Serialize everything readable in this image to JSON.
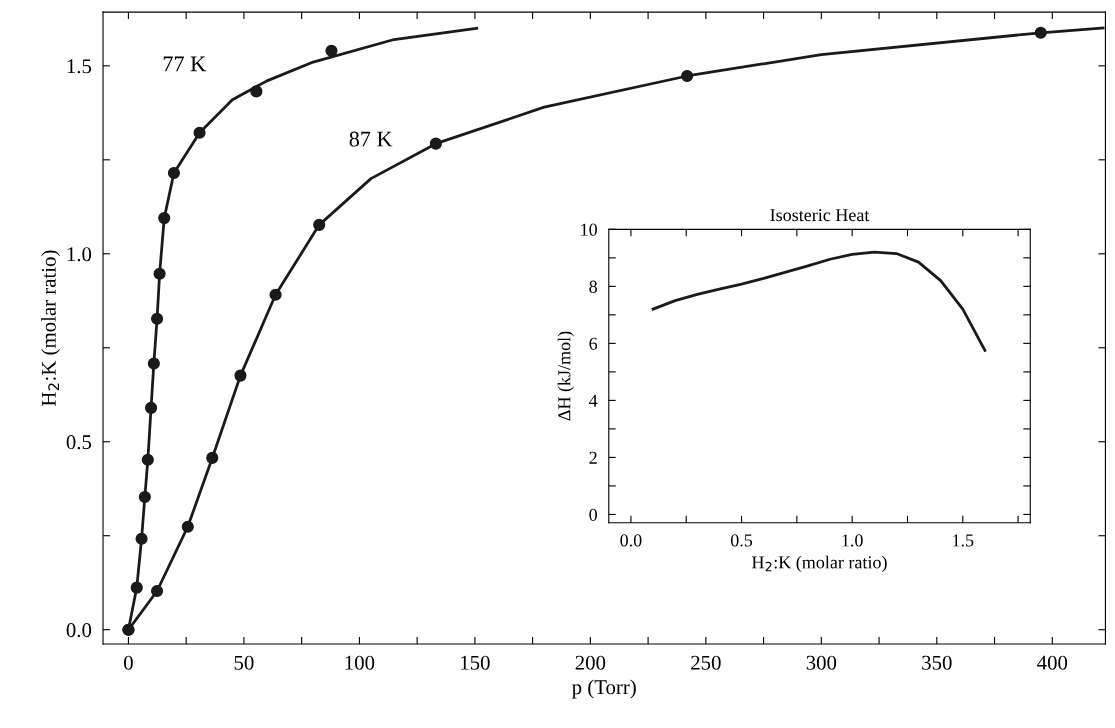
{
  "chart_data": [
    {
      "type": "scatter",
      "xlabel": "p (Torr)",
      "ylabel": "H$_{2}$:K (molar ratio)",
      "xlim": [
        -11,
        423
      ],
      "ylim": [
        -0.038,
        1.643
      ],
      "xticks": [
        0,
        {
          "value": 25,
          "label": null
        },
        50,
        {
          "value": 75,
          "label": null
        },
        100,
        {
          "value": 125,
          "label": null
        },
        150,
        {
          "value": 175,
          "label": null
        },
        200,
        {
          "value": 225,
          "label": null
        },
        250,
        {
          "value": 275,
          "label": null
        },
        300,
        {
          "value": 325,
          "label": null
        },
        350,
        {
          "value": 375,
          "label": null
        },
        400
      ],
      "yticks": [
        {
          "value": 0,
          "label": "0.0"
        },
        {
          "value": 0.25,
          "label": null
        },
        0.5,
        {
          "value": 0.75,
          "label": null
        },
        {
          "value": 1.0,
          "label": "1.0"
        },
        {
          "value": 1.25,
          "label": null
        },
        1.5
      ],
      "grid": false,
      "legend": false,
      "series": [
        {
          "type": "line",
          "color": "#1a1a1a",
          "marker": "none",
          "line_style": "solid",
          "x": [
            0,
            3.6,
            5.7,
            7.1,
            8.4,
            9.8,
            11,
            12.4,
            13.5,
            15.5,
            19.7,
            30.8,
            45,
            60,
            80,
            115,
            150.8
          ],
          "values": [
            0,
            0.112,
            0.242,
            0.353,
            0.452,
            0.59,
            0.708,
            0.827,
            0.947,
            1.095,
            1.215,
            1.322,
            1.41,
            1.46,
            1.51,
            1.57,
            1.6
          ]
        },
        {
          "type": "line",
          "color": "#1a1a1a",
          "marker": "none",
          "line_style": "solid",
          "x": [
            0,
            12.4,
            25.7,
            36.3,
            48.5,
            63.7,
            82.6,
            105,
            133.1,
            180,
            241.9,
            300,
            395,
            422
          ],
          "values": [
            0,
            0.103,
            0.274,
            0.457,
            0.676,
            0.891,
            1.077,
            1.2,
            1.293,
            1.39,
            1.473,
            1.53,
            1.588,
            1.601
          ]
        },
        {
          "type": "scatter",
          "color": "#1a1a1a",
          "marker": "circle",
          "x": [
            0,
            3.6,
            5.7,
            7.1,
            8.4,
            9.8,
            11,
            12.4,
            13.5,
            15.5,
            19.7,
            30.8,
            55.4,
            87.9
          ],
          "values": [
            0,
            0.112,
            0.242,
            0.353,
            0.452,
            0.59,
            0.708,
            0.827,
            0.947,
            1.095,
            1.215,
            1.322,
            1.432,
            1.54
          ]
        },
        {
          "type": "scatter",
          "color": "#1a1a1a",
          "marker": "circle",
          "x": [
            0,
            12.4,
            25.7,
            36.3,
            48.5,
            63.7,
            82.6,
            133.1,
            241.9,
            395
          ],
          "values": [
            0,
            0.103,
            0.274,
            0.457,
            0.676,
            0.891,
            1.077,
            1.293,
            1.473,
            1.588
          ]
        }
      ],
      "annotations": [
        "77 K",
        "87 K"
      ]
    },
    {
      "type": "line",
      "title": "Isosteric Heat",
      "xlabel": "H$_{2}$:K (molar ratio)",
      "ylabel": "ΔH (kJ/mol)",
      "xlim": [
        -0.1,
        1.805
      ],
      "ylim": [
        -0.29,
        10
      ],
      "xticks": [
        {
          "value": 0,
          "label": "0.0"
        },
        {
          "value": 0.25,
          "label": null
        },
        0.5,
        {
          "value": 0.75,
          "label": null
        },
        {
          "value": 1.0,
          "label": "1.0"
        },
        {
          "value": 1.25,
          "label": null
        },
        1.5,
        {
          "value": 1.75,
          "label": null
        }
      ],
      "yticks": [
        0,
        {
          "value": 1,
          "label": null
        },
        2,
        {
          "value": 3,
          "label": null
        },
        4,
        {
          "value": 5,
          "label": null
        },
        6,
        {
          "value": 7,
          "label": null
        },
        8,
        {
          "value": 9,
          "label": null
        },
        10
      ],
      "grid": false,
      "legend": false,
      "series": [
        {
          "color": "#1a1a1a",
          "marker": "none",
          "line_style": "solid",
          "x": [
            0.1,
            0.2,
            0.3,
            0.4,
            0.5,
            0.6,
            0.7,
            0.8,
            0.9,
            1.0,
            1.1,
            1.2,
            1.3,
            1.4,
            1.5,
            1.6
          ],
          "values": [
            7.2,
            7.5,
            7.72,
            7.9,
            8.08,
            8.28,
            8.5,
            8.72,
            8.95,
            9.12,
            9.2,
            9.15,
            8.85,
            8.2,
            7.2,
            5.75
          ]
        }
      ]
    }
  ]
}
